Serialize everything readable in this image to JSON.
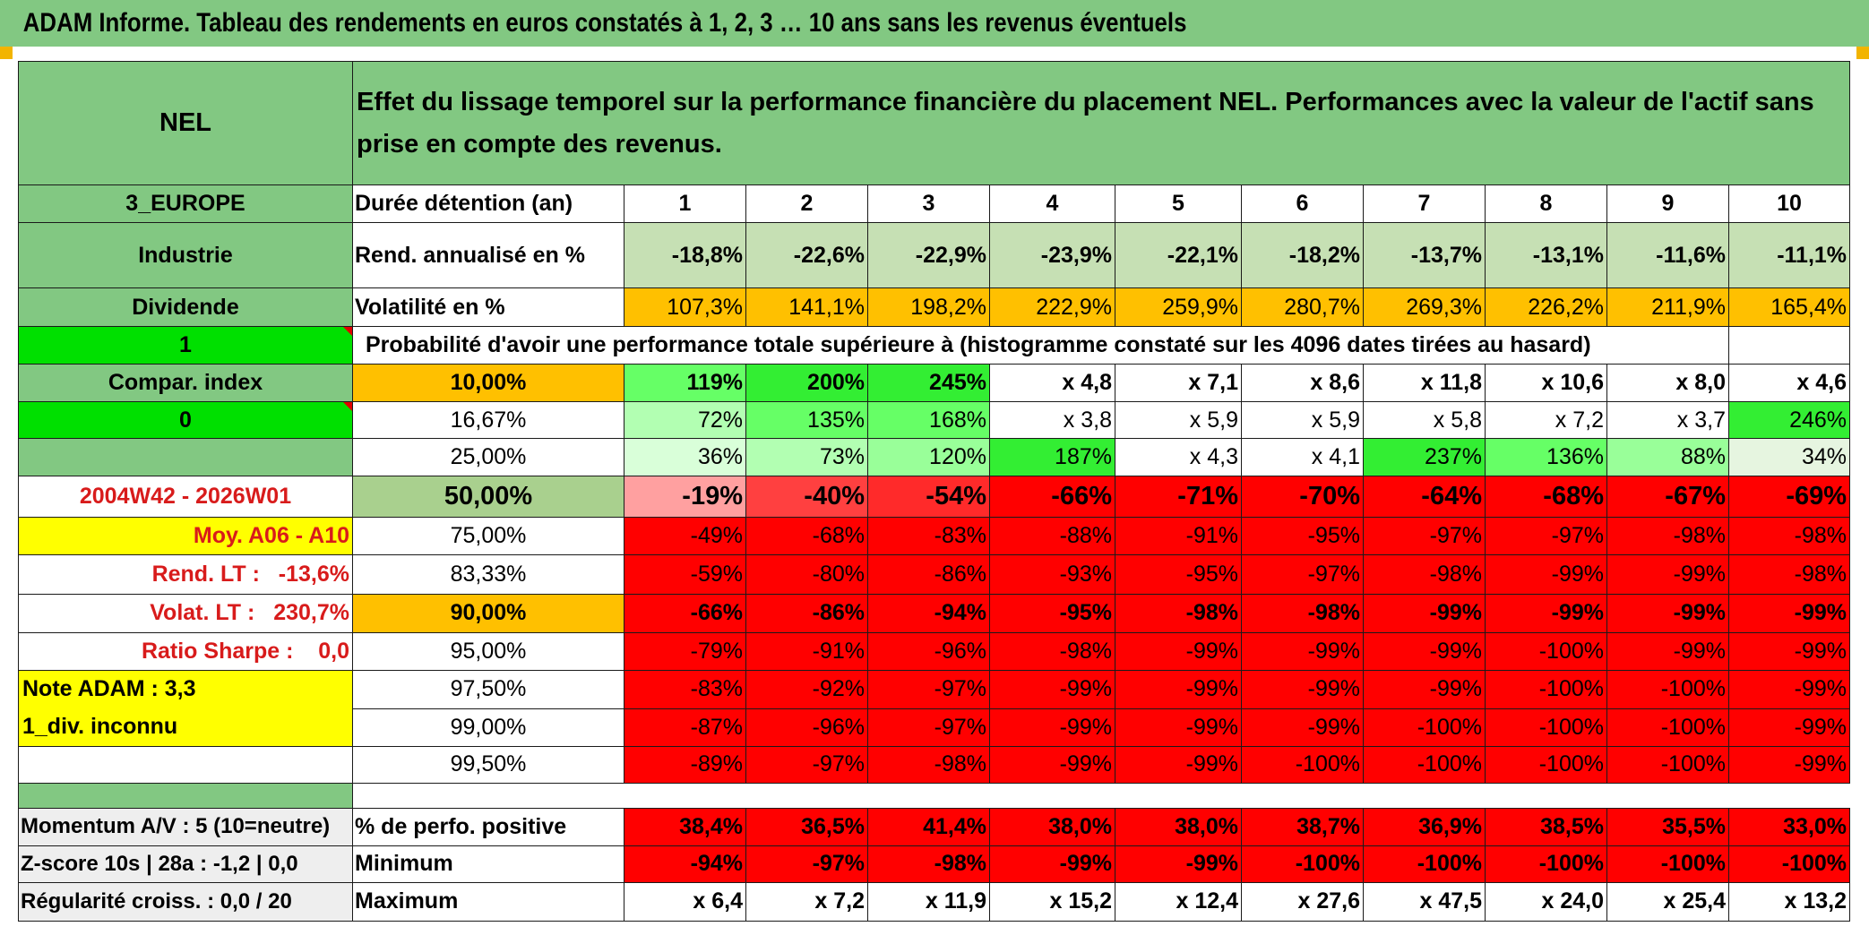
{
  "title": "ADAM Informe. Tableau des rendements en euros constatés à 1, 2, 3 … 10 ans sans les revenus éventuels",
  "header": {
    "code": "NEL",
    "description": "Effet du lissage temporel sur la performance financière du placement NEL. Performances avec la valeur de l'actif sans prise en compte des revenus."
  },
  "left": {
    "region": "3_EUROPE",
    "sector": "Industrie",
    "dividend": "Dividende",
    "one": "1",
    "compar": "Compar. index",
    "zero": "0",
    "period": "2004W42 - 2026W01",
    "moy": "Moy. A06 - A10",
    "rend_lt_label": "Rend. LT :",
    "rend_lt_value": "-13,6%",
    "volat_lt_label": "Volat. LT :",
    "volat_lt_value": "230,7%",
    "sharpe_label": "Ratio Sharpe :",
    "sharpe_value": "0,0",
    "note": "Note ADAM : 3,3",
    "div": "1_div. inconnu",
    "momentum": "Momentum A/V : 5 (10=neutre)",
    "zscore": "Z-score 10s | 28a : -1,2 | 0,0",
    "regularite": "Régularité croiss. : 0,0 / 20"
  },
  "rows": {
    "duree": {
      "label": "Durée détention (an)",
      "values": [
        "1",
        "2",
        "3",
        "4",
        "5",
        "6",
        "7",
        "8",
        "9",
        "10"
      ]
    },
    "rend": {
      "label": "Rend. annualisé en %",
      "values": [
        "-18,8%",
        "-22,6%",
        "-22,9%",
        "-23,9%",
        "-22,1%",
        "-18,2%",
        "-13,7%",
        "-13,1%",
        "-11,6%",
        "-11,1%"
      ]
    },
    "vol": {
      "label": "Volatilité en %",
      "values": [
        "107,3%",
        "141,1%",
        "198,2%",
        "222,9%",
        "259,9%",
        "280,7%",
        "269,3%",
        "226,2%",
        "211,9%",
        "165,4%"
      ]
    },
    "proba_title": "Probabilité d'avoir une performance totale supérieure à (histogramme constaté sur les 4096 dates tirées au hasard)"
  },
  "prob": [
    {
      "pct": "10,00%",
      "values": [
        "119%",
        "200%",
        "245%",
        "x 4,8",
        "x 7,1",
        "x 8,6",
        "x 11,8",
        "x 10,6",
        "x 8,0",
        "x 4,6"
      ]
    },
    {
      "pct": "16,67%",
      "values": [
        "72%",
        "135%",
        "168%",
        "x 3,8",
        "x 5,9",
        "x 5,9",
        "x 5,8",
        "x 7,2",
        "x 3,7",
        "246%"
      ]
    },
    {
      "pct": "25,00%",
      "values": [
        "36%",
        "73%",
        "120%",
        "187%",
        "x 4,3",
        "x 4,1",
        "237%",
        "136%",
        "88%",
        "34%"
      ]
    },
    {
      "pct": "50,00%",
      "values": [
        "-19%",
        "-40%",
        "-54%",
        "-66%",
        "-71%",
        "-70%",
        "-64%",
        "-68%",
        "-67%",
        "-69%"
      ]
    },
    {
      "pct": "75,00%",
      "values": [
        "-49%",
        "-68%",
        "-83%",
        "-88%",
        "-91%",
        "-95%",
        "-97%",
        "-97%",
        "-98%",
        "-98%"
      ]
    },
    {
      "pct": "83,33%",
      "values": [
        "-59%",
        "-80%",
        "-86%",
        "-93%",
        "-95%",
        "-97%",
        "-98%",
        "-99%",
        "-99%",
        "-98%"
      ]
    },
    {
      "pct": "90,00%",
      "values": [
        "-66%",
        "-86%",
        "-94%",
        "-95%",
        "-98%",
        "-98%",
        "-99%",
        "-99%",
        "-99%",
        "-99%"
      ]
    },
    {
      "pct": "95,00%",
      "values": [
        "-79%",
        "-91%",
        "-96%",
        "-98%",
        "-99%",
        "-99%",
        "-99%",
        "-100%",
        "-99%",
        "-99%"
      ]
    },
    {
      "pct": "97,50%",
      "values": [
        "-83%",
        "-92%",
        "-97%",
        "-99%",
        "-99%",
        "-99%",
        "-99%",
        "-100%",
        "-100%",
        "-99%"
      ]
    },
    {
      "pct": "99,00%",
      "values": [
        "-87%",
        "-96%",
        "-97%",
        "-99%",
        "-99%",
        "-99%",
        "-100%",
        "-100%",
        "-100%",
        "-99%"
      ]
    },
    {
      "pct": "99,50%",
      "values": [
        "-89%",
        "-97%",
        "-98%",
        "-99%",
        "-99%",
        "-100%",
        "-100%",
        "-100%",
        "-100%",
        "-99%"
      ]
    }
  ],
  "bottom": [
    {
      "label": "% de perfo. positive",
      "values": [
        "38,4%",
        "36,5%",
        "41,4%",
        "38,0%",
        "38,0%",
        "38,7%",
        "36,9%",
        "38,5%",
        "35,5%",
        "33,0%"
      ]
    },
    {
      "label": "Minimum",
      "values": [
        "-94%",
        "-97%",
        "-98%",
        "-99%",
        "-99%",
        "-100%",
        "-100%",
        "-100%",
        "-100%",
        "-100%"
      ]
    },
    {
      "label": "Maximum",
      "values": [
        "x 6,4",
        "x 7,2",
        "x 11,9",
        "x 15,2",
        "x 12,4",
        "x 27,6",
        "x 47,5",
        "x 24,0",
        "x 25,4",
        "x 13,2"
      ]
    }
  ]
}
